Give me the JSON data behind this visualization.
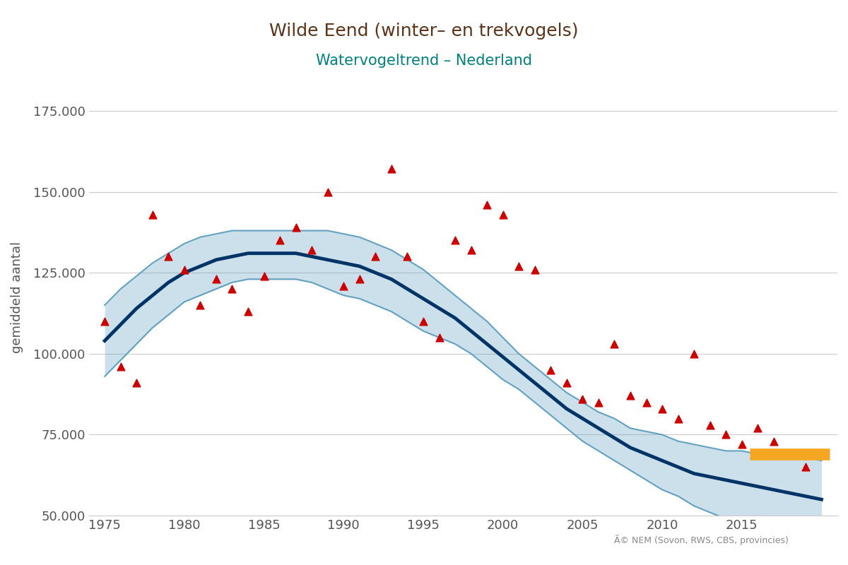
{
  "title": "Wilde Eend (winter– en trekvogels)",
  "subtitle": "Watervogeltrend – Nederland",
  "title_color": "#5C3317",
  "subtitle_color": "#008080",
  "ylabel": "gemiddeld aantal",
  "xlim": [
    1974,
    2021
  ],
  "ylim": [
    50000,
    185000
  ],
  "yticks": [
    50000,
    75000,
    100000,
    125000,
    150000,
    175000
  ],
  "ytick_labels": [
    "50.000",
    "75.000",
    "100.000",
    "125.000",
    "150.000",
    "175.000"
  ],
  "xticks": [
    1975,
    1980,
    1985,
    1990,
    1995,
    2000,
    2005,
    2010,
    2015
  ],
  "background_color": "#ffffff",
  "grid_color": "#cccccc",
  "trend_color": "#003366",
  "ci_color": "#5599bb",
  "scatter_color": "#cc0000",
  "orange_bar_color": "#f5a623",
  "copyright_text": "Ã© NEM (Sovon, RWS, CBS, provincies)",
  "scatter_x": [
    1975,
    1976,
    1977,
    1978,
    1979,
    1980,
    1981,
    1982,
    1983,
    1984,
    1985,
    1986,
    1987,
    1988,
    1989,
    1990,
    1991,
    1992,
    1993,
    1994,
    1995,
    1996,
    1997,
    1998,
    1999,
    2000,
    2001,
    2002,
    2003,
    2004,
    2005,
    2006,
    2007,
    2008,
    2009,
    2010,
    2011,
    2012,
    2013,
    2014,
    2015,
    2016,
    2017,
    2019
  ],
  "scatter_y": [
    110000,
    96000,
    91000,
    143000,
    130000,
    126000,
    115000,
    123000,
    120000,
    113000,
    124000,
    135000,
    139000,
    132000,
    150000,
    121000,
    123000,
    130000,
    157000,
    130000,
    110000,
    105000,
    135000,
    132000,
    146000,
    143000,
    127000,
    126000,
    95000,
    91000,
    86000,
    85000,
    103000,
    87000,
    85000,
    83000,
    80000,
    100000,
    78000,
    75000,
    72000,
    77000,
    73000,
    65000
  ],
  "trend_x": [
    1975,
    1976,
    1977,
    1978,
    1979,
    1980,
    1981,
    1982,
    1983,
    1984,
    1985,
    1986,
    1987,
    1988,
    1989,
    1990,
    1991,
    1992,
    1993,
    1994,
    1995,
    1996,
    1997,
    1998,
    1999,
    2000,
    2001,
    2002,
    2003,
    2004,
    2005,
    2006,
    2007,
    2008,
    2009,
    2010,
    2011,
    2012,
    2013,
    2014,
    2015,
    2016,
    2017,
    2018,
    2019,
    2020
  ],
  "trend_y": [
    104000,
    109000,
    114000,
    118000,
    122000,
    125000,
    127000,
    129000,
    130000,
    131000,
    131000,
    131000,
    131000,
    130000,
    129000,
    128000,
    127000,
    125000,
    123000,
    120000,
    117000,
    114000,
    111000,
    107000,
    103000,
    99000,
    95000,
    91000,
    87000,
    83000,
    80000,
    77000,
    74000,
    71000,
    69000,
    67000,
    65000,
    63000,
    62000,
    61000,
    60000,
    59000,
    58000,
    57000,
    56000,
    55000
  ],
  "ci_upper": [
    115000,
    120000,
    124000,
    128000,
    131000,
    134000,
    136000,
    137000,
    138000,
    138000,
    138000,
    138000,
    138000,
    138000,
    138000,
    137000,
    136000,
    134000,
    132000,
    129000,
    126000,
    122000,
    118000,
    114000,
    110000,
    105000,
    100000,
    96000,
    92000,
    88000,
    85000,
    82000,
    80000,
    77000,
    76000,
    75000,
    73000,
    72000,
    71000,
    70000,
    70000,
    69000,
    69000,
    68000,
    68000,
    67000
  ],
  "ci_lower": [
    93000,
    98000,
    103000,
    108000,
    112000,
    116000,
    118000,
    120000,
    122000,
    123000,
    123000,
    123000,
    123000,
    122000,
    120000,
    118000,
    117000,
    115000,
    113000,
    110000,
    107000,
    105000,
    103000,
    100000,
    96000,
    92000,
    89000,
    85000,
    81000,
    77000,
    73000,
    70000,
    67000,
    64000,
    61000,
    58000,
    56000,
    53000,
    51000,
    49000,
    48000,
    47000,
    46000,
    44000,
    43000,
    42000
  ],
  "orange_bar_x_start": 2015.5,
  "orange_bar_x_end": 2020.5,
  "orange_bar_y": 69000
}
